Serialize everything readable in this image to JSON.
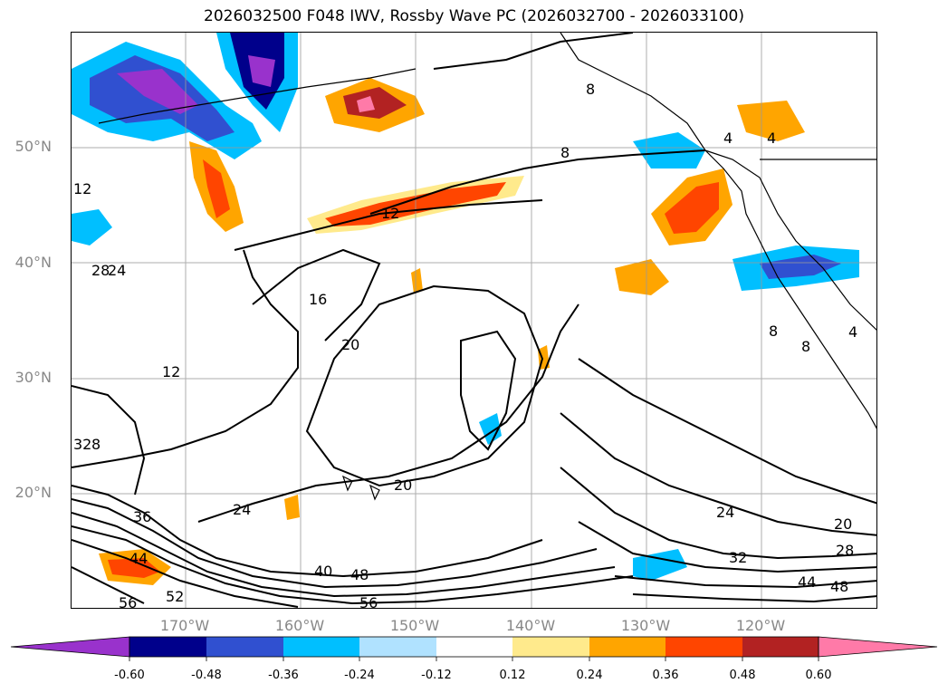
{
  "title": "2026032500 F048 IWV, Rossby Wave PC (2026032700 - 2026033100)",
  "map": {
    "lat_labels": [
      "50°N",
      "40°N",
      "30°N",
      "20°N"
    ],
    "lon_labels": [
      "170°W",
      "160°W",
      "150°W",
      "140°W",
      "130°W",
      "120°W"
    ],
    "contour_labels": [
      "8",
      "8",
      "4",
      "4",
      "12",
      "12",
      "28",
      "24",
      "16",
      "20",
      "12",
      "32",
      "8",
      "20",
      "24",
      "36",
      "44",
      "40",
      "48",
      "52",
      "56",
      "56",
      "24",
      "32",
      "20",
      "28",
      "44",
      "48",
      "8",
      "8",
      "4"
    ]
  },
  "colorbar": {
    "colors": [
      "#9932cc",
      "#00008b",
      "#3050d0",
      "#00bfff",
      "#b0e2ff",
      "#ffffff",
      "#ffea8c",
      "#ffa500",
      "#ff4500",
      "#b22222",
      "#ff7aa8"
    ],
    "labels": [
      "-0.60",
      "-0.48",
      "-0.36",
      "-0.24",
      "-0.12",
      "0.12",
      "0.24",
      "0.36",
      "0.48",
      "0.60"
    ]
  }
}
